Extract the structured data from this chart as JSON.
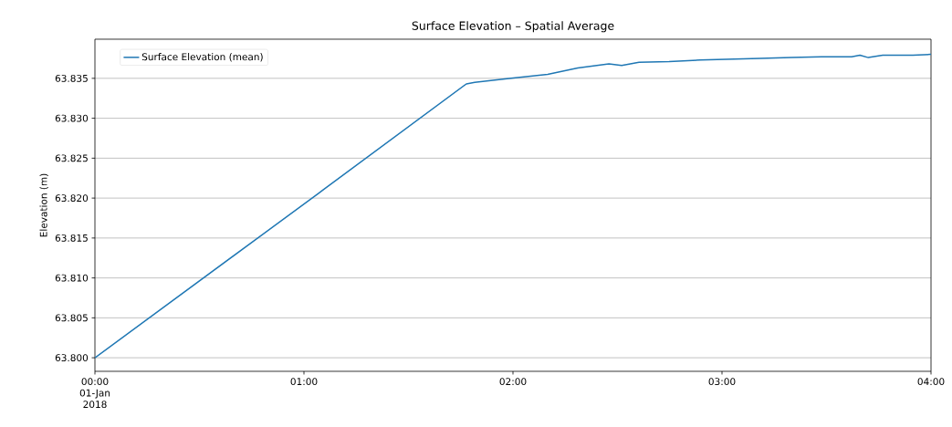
{
  "chart_data": {
    "type": "line",
    "title": "Surface Elevation – Spatial Average",
    "ylabel": "Elevation (m)",
    "x": [
      0,
      1.07,
      1.09,
      1.777,
      1.817,
      1.991,
      2.166,
      2.31,
      2.459,
      2.52,
      2.603,
      2.747,
      2.895,
      3.039,
      3.183,
      3.332,
      3.476,
      3.62,
      3.66,
      3.7,
      3.769,
      3.913,
      4.0
    ],
    "series": [
      {
        "name": "Surface Elevation (mean)",
        "color": "#1f77b4",
        "values": [
          63.8,
          63.8206,
          63.821,
          63.8343,
          63.8345,
          63.835,
          63.8355,
          63.8363,
          63.8368,
          63.8366,
          63.837,
          63.8371,
          63.8373,
          63.8374,
          63.8375,
          63.8376,
          63.8377,
          63.8377,
          63.8379,
          63.8376,
          63.8379,
          63.8379,
          63.838
        ]
      }
    ],
    "xlim": [
      0,
      4
    ],
    "xticks": [
      {
        "value": 0,
        "label": "00:00 01-Jan 2018"
      },
      {
        "value": 1,
        "label": "01:00"
      },
      {
        "value": 2,
        "label": "02:00"
      },
      {
        "value": 3,
        "label": "03:00"
      },
      {
        "value": 4,
        "label": "04:00"
      }
    ],
    "ylim": [
      63.7983,
      63.8399
    ],
    "yticks": [
      {
        "value": 63.8,
        "label": "63.800"
      },
      {
        "value": 63.805,
        "label": "63.805"
      },
      {
        "value": 63.81,
        "label": "63.810"
      },
      {
        "value": 63.815,
        "label": "63.815"
      },
      {
        "value": 63.82,
        "label": "63.820"
      },
      {
        "value": 63.825,
        "label": "63.825"
      },
      {
        "value": 63.83,
        "label": "63.830"
      },
      {
        "value": 63.835,
        "label": "63.835"
      }
    ],
    "grid": "y",
    "legend": "top left"
  }
}
